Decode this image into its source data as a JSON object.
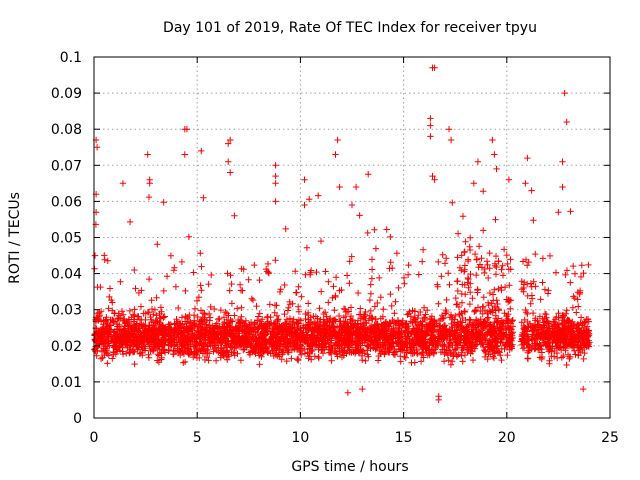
{
  "chart_data": {
    "type": "scatter",
    "title": "Day 101 of 2019, Rate Of TEC Index for receiver tpyu",
    "xlabel": "GPS time / hours",
    "ylabel": "ROTI / TECUs",
    "xlim": [
      0,
      25
    ],
    "ylim": [
      0,
      0.1
    ],
    "xticks": [
      0,
      5,
      10,
      15,
      20,
      25
    ],
    "xtick_labels": [
      "0",
      "5",
      "10",
      "15",
      "20",
      "25"
    ],
    "yticks": [
      0,
      0.01,
      0.02,
      0.03,
      0.04,
      0.05,
      0.06,
      0.07,
      0.08,
      0.09,
      0.1
    ],
    "ytick_labels": [
      "0",
      "0.01",
      "0.02",
      "0.03",
      "0.04",
      "0.05",
      "0.06",
      "0.07",
      "0.08",
      "0.09",
      "0.1"
    ],
    "grid": true,
    "marker": "+",
    "color": "#ff0000",
    "data_gap_hours": [
      20.3,
      20.7
    ],
    "time_range_hours": [
      0,
      24
    ],
    "typical_range": [
      0.01,
      0.035
    ],
    "series": [
      {
        "name": "ROTI",
        "notable_points": [
          {
            "x": 0.1,
            "y": 0.077
          },
          {
            "x": 0.15,
            "y": 0.075
          },
          {
            "x": 0.1,
            "y": 0.062
          },
          {
            "x": 0.1,
            "y": 0.057
          },
          {
            "x": 0.05,
            "y": 0.045
          },
          {
            "x": 1.4,
            "y": 0.065
          },
          {
            "x": 2.6,
            "y": 0.073
          },
          {
            "x": 2.7,
            "y": 0.066
          },
          {
            "x": 2.7,
            "y": 0.065
          },
          {
            "x": 4.4,
            "y": 0.08
          },
          {
            "x": 4.5,
            "y": 0.08
          },
          {
            "x": 4.4,
            "y": 0.073
          },
          {
            "x": 5.2,
            "y": 0.074
          },
          {
            "x": 5.3,
            "y": 0.061
          },
          {
            "x": 6.6,
            "y": 0.077
          },
          {
            "x": 6.5,
            "y": 0.076
          },
          {
            "x": 6.5,
            "y": 0.071
          },
          {
            "x": 6.6,
            "y": 0.068
          },
          {
            "x": 8.8,
            "y": 0.07
          },
          {
            "x": 8.8,
            "y": 0.067
          },
          {
            "x": 8.8,
            "y": 0.065
          },
          {
            "x": 8.8,
            "y": 0.06
          },
          {
            "x": 10.2,
            "y": 0.066
          },
          {
            "x": 10.2,
            "y": 0.059
          },
          {
            "x": 11.8,
            "y": 0.077
          },
          {
            "x": 11.7,
            "y": 0.073
          },
          {
            "x": 11.9,
            "y": 0.064
          },
          {
            "x": 12.7,
            "y": 0.064
          },
          {
            "x": 12.5,
            "y": 0.059
          },
          {
            "x": 16.4,
            "y": 0.097
          },
          {
            "x": 16.5,
            "y": 0.097
          },
          {
            "x": 16.3,
            "y": 0.083
          },
          {
            "x": 16.3,
            "y": 0.081
          },
          {
            "x": 16.3,
            "y": 0.078
          },
          {
            "x": 16.4,
            "y": 0.067
          },
          {
            "x": 16.5,
            "y": 0.066
          },
          {
            "x": 17.2,
            "y": 0.08
          },
          {
            "x": 17.3,
            "y": 0.077
          },
          {
            "x": 18.6,
            "y": 0.071
          },
          {
            "x": 18.4,
            "y": 0.065
          },
          {
            "x": 19.3,
            "y": 0.077
          },
          {
            "x": 19.4,
            "y": 0.073
          },
          {
            "x": 19.5,
            "y": 0.069
          },
          {
            "x": 20.1,
            "y": 0.066
          },
          {
            "x": 21.0,
            "y": 0.072
          },
          {
            "x": 20.9,
            "y": 0.065
          },
          {
            "x": 21.2,
            "y": 0.063
          },
          {
            "x": 22.8,
            "y": 0.09
          },
          {
            "x": 22.9,
            "y": 0.082
          },
          {
            "x": 22.7,
            "y": 0.071
          },
          {
            "x": 22.7,
            "y": 0.064
          },
          {
            "x": 22.5,
            "y": 0.057
          },
          {
            "x": 16.7,
            "y": 0.006
          },
          {
            "x": 16.7,
            "y": 0.005
          },
          {
            "x": 12.3,
            "y": 0.007
          },
          {
            "x": 13.0,
            "y": 0.008
          },
          {
            "x": 23.7,
            "y": 0.008
          }
        ]
      }
    ]
  }
}
